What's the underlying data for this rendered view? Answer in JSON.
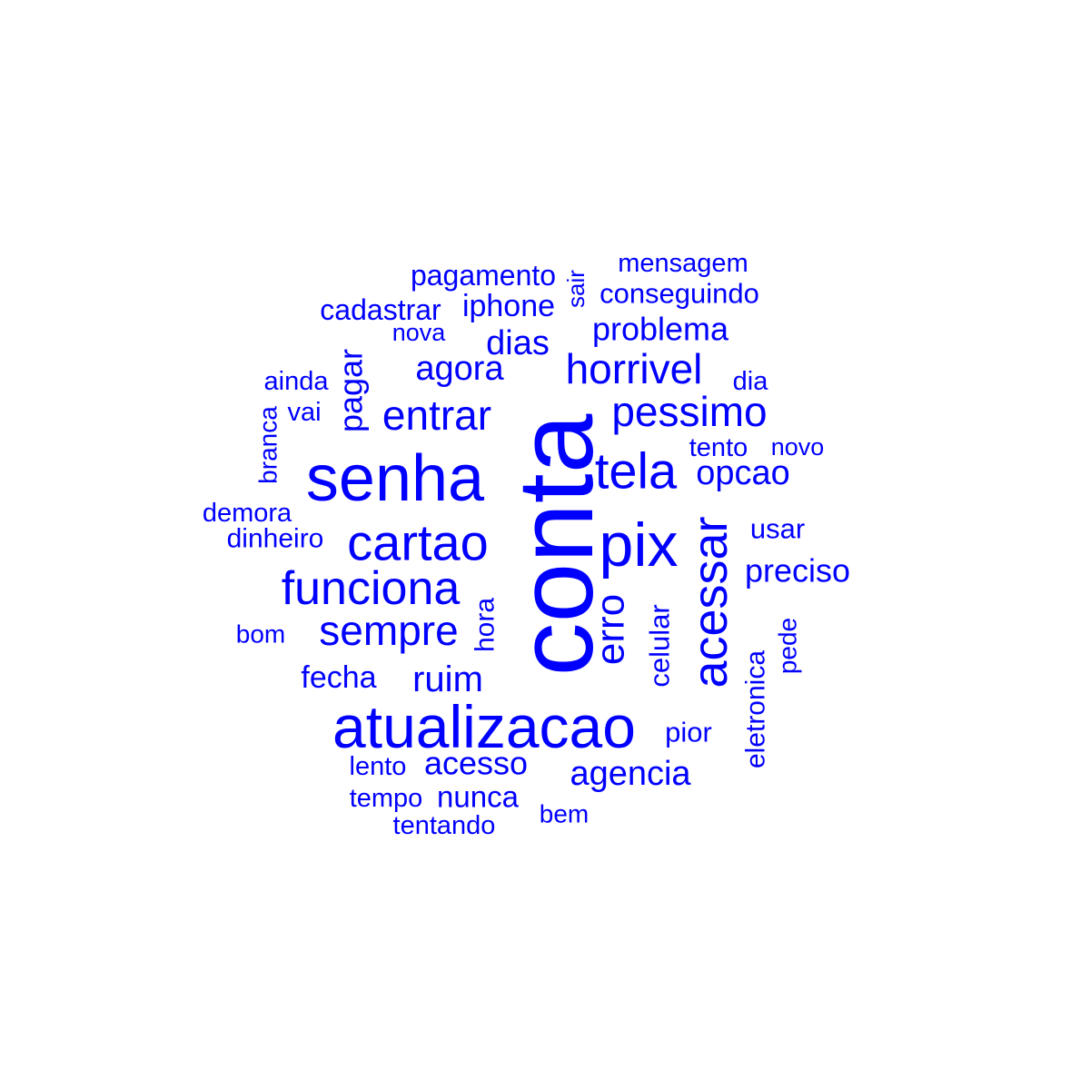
{
  "word_cloud": {
    "color": "#0000FF",
    "words": [
      {
        "text": "conta",
        "weight": 1.0,
        "rotated": true
      },
      {
        "text": "senha",
        "weight": 0.7
      },
      {
        "text": "atualizacao",
        "weight": 0.66
      },
      {
        "text": "pix",
        "weight": 0.62
      },
      {
        "text": "cartao",
        "weight": 0.55
      },
      {
        "text": "acessar",
        "weight": 0.52,
        "rotated": true
      },
      {
        "text": "tela",
        "weight": 0.5
      },
      {
        "text": "funciona",
        "weight": 0.48
      },
      {
        "text": "pessimo",
        "weight": 0.44
      },
      {
        "text": "horrivel",
        "weight": 0.43
      },
      {
        "text": "entrar",
        "weight": 0.42
      },
      {
        "text": "sempre",
        "weight": 0.42
      },
      {
        "text": "erro",
        "weight": 0.4,
        "rotated": true
      },
      {
        "text": "ruim",
        "weight": 0.37
      },
      {
        "text": "agora",
        "weight": 0.36
      },
      {
        "text": "dias",
        "weight": 0.36
      },
      {
        "text": "agencia",
        "weight": 0.36
      },
      {
        "text": "opcao",
        "weight": 0.36
      },
      {
        "text": "problema",
        "weight": 0.35
      },
      {
        "text": "pagar",
        "weight": 0.33,
        "rotated": true
      },
      {
        "text": "acesso",
        "weight": 0.33
      },
      {
        "text": "preciso",
        "weight": 0.33
      },
      {
        "text": "fecha",
        "weight": 0.31
      },
      {
        "text": "iphone",
        "weight": 0.31
      },
      {
        "text": "nunca",
        "weight": 0.3
      },
      {
        "text": "cadastrar",
        "weight": 0.3
      },
      {
        "text": "pagamento",
        "weight": 0.3
      },
      {
        "text": "conseguindo",
        "weight": 0.3
      },
      {
        "text": "celular",
        "weight": 0.3,
        "rotated": true
      },
      {
        "text": "pior",
        "weight": 0.3
      },
      {
        "text": "usar",
        "weight": 0.3
      },
      {
        "text": "hora",
        "weight": 0.29,
        "rotated": true
      },
      {
        "text": "eletronica",
        "weight": 0.29,
        "rotated": true
      },
      {
        "text": "dinheiro",
        "weight": 0.29
      },
      {
        "text": "tento",
        "weight": 0.29
      },
      {
        "text": "lento",
        "weight": 0.29
      },
      {
        "text": "vai",
        "weight": 0.28
      },
      {
        "text": "dia",
        "weight": 0.28
      },
      {
        "text": "demora",
        "weight": 0.28
      },
      {
        "text": "ainda",
        "weight": 0.28
      },
      {
        "text": "mensagem",
        "weight": 0.28
      },
      {
        "text": "pede",
        "weight": 0.28,
        "rotated": true
      },
      {
        "text": "tempo",
        "weight": 0.28
      },
      {
        "text": "tentando",
        "weight": 0.28
      },
      {
        "text": "branca",
        "weight": 0.27,
        "rotated": true
      },
      {
        "text": "novo",
        "weight": 0.27
      },
      {
        "text": "nova",
        "weight": 0.27
      },
      {
        "text": "bom",
        "weight": 0.27
      },
      {
        "text": "bem",
        "weight": 0.27
      },
      {
        "text": "sair",
        "weight": 0.26,
        "rotated": true
      }
    ]
  }
}
